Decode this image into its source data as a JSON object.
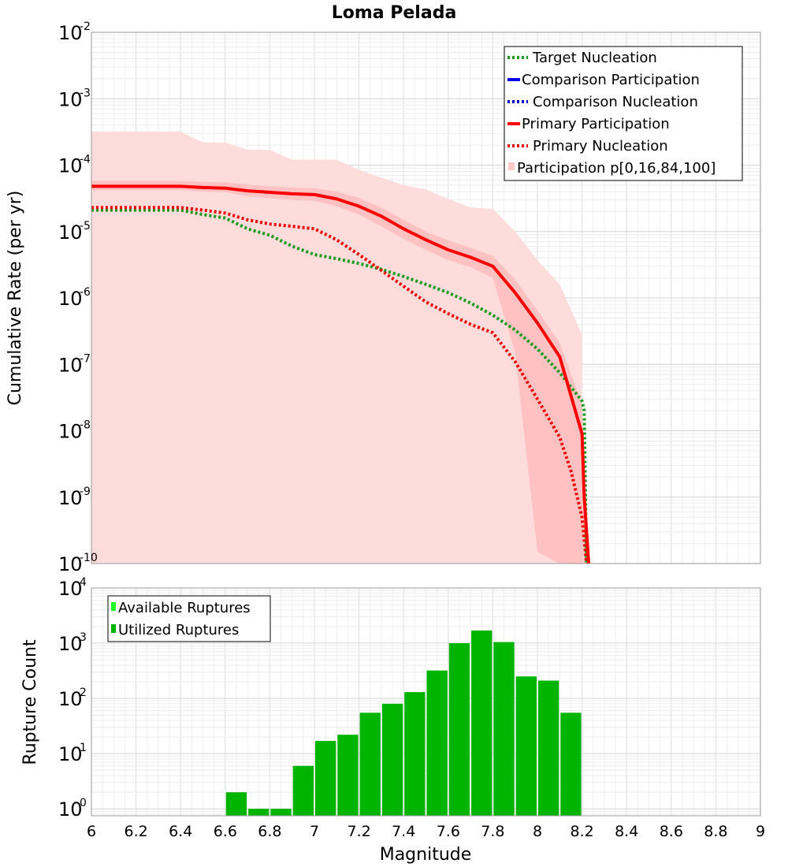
{
  "chart_data": [
    {
      "type": "line",
      "title": "Loma Pelada",
      "ylabel": "Cumulative Rate (per yr)",
      "xlabel": "",
      "yscale": "log",
      "xlim": [
        6,
        9
      ],
      "ylim": [
        1e-10,
        0.01
      ],
      "grid": true,
      "legend_position": "top-right",
      "ytick_exponents": [
        "-2",
        "-3",
        "-4",
        "-5",
        "-6",
        "-7",
        "-8",
        "-9",
        "-10"
      ],
      "series": [
        {
          "name": "Target Nucleation",
          "style": "dotted",
          "color": "#1a9a1a",
          "x": [
            6.0,
            6.4,
            6.5,
            6.6,
            6.7,
            6.8,
            6.9,
            7.0,
            7.1,
            7.2,
            7.3,
            7.4,
            7.5,
            7.6,
            7.7,
            7.8,
            7.9,
            8.0,
            8.1,
            8.2,
            8.21,
            8.22
          ],
          "y": [
            2.1e-05,
            2.1e-05,
            1.8e-05,
            1.6e-05,
            1.1e-05,
            8.8e-06,
            6e-06,
            4.5e-06,
            3.9e-06,
            3.3e-06,
            2.7e-06,
            2.1e-06,
            1.6e-06,
            1.2e-06,
            8.4e-07,
            5.5e-07,
            3.3e-07,
            1.7e-07,
            7.5e-08,
            2.8e-08,
            2e-08,
            1e-10
          ]
        },
        {
          "name": "Comparison Participation",
          "style": "solid",
          "color": "#0000ee",
          "x": [],
          "y": []
        },
        {
          "name": "Comparison Nucleation",
          "style": "dotted",
          "color": "#0000cc",
          "x": [],
          "y": []
        },
        {
          "name": "Primary Participation",
          "style": "solid",
          "color": "#ff0000",
          "x": [
            6.0,
            6.4,
            6.5,
            6.6,
            6.7,
            6.8,
            6.9,
            7.0,
            7.1,
            7.2,
            7.3,
            7.4,
            7.5,
            7.6,
            7.7,
            7.8,
            7.9,
            8.0,
            8.1,
            8.2,
            8.21,
            8.23
          ],
          "y": [
            4.8e-05,
            4.8e-05,
            4.6e-05,
            4.5e-05,
            4.1e-05,
            3.9e-05,
            3.7e-05,
            3.6e-05,
            3.1e-05,
            2.4e-05,
            1.7e-05,
            1.1e-05,
            7.5e-06,
            5.3e-06,
            4.1e-06,
            3e-06,
            1.2e-06,
            4.2e-07,
            1.3e-07,
            9e-09,
            1e-09,
            1e-10
          ]
        },
        {
          "name": "Primary Nucleation",
          "style": "dotted",
          "color": "#ee0000",
          "x": [
            6.0,
            6.4,
            6.5,
            6.6,
            6.7,
            6.8,
            6.9,
            7.0,
            7.1,
            7.2,
            7.3,
            7.4,
            7.5,
            7.6,
            7.7,
            7.8,
            7.9,
            8.0,
            8.1,
            8.15,
            8.2,
            8.22
          ],
          "y": [
            2.3e-05,
            2.3e-05,
            2.1e-05,
            1.9e-05,
            1.5e-05,
            1.3e-05,
            1.2e-05,
            1.1e-05,
            7.5e-06,
            4.5e-06,
            2.6e-06,
            1.5e-06,
            8.7e-07,
            5.8e-07,
            4e-07,
            3e-07,
            1.1e-07,
            3e-08,
            8e-09,
            2.5e-09,
            5e-10,
            1e-10
          ]
        }
      ],
      "bands": [
        {
          "name": "Participation p[0,16,84,100]",
          "color": "#ffc9c9",
          "outer": {
            "x": [
              6.0,
              6.4,
              6.5,
              6.6,
              6.7,
              6.8,
              6.9,
              7.0,
              7.1,
              7.2,
              7.3,
              7.4,
              7.5,
              7.6,
              7.7,
              7.8,
              7.9,
              8.0,
              8.1,
              8.2
            ],
            "upper": [
              0.00032,
              0.00032,
              0.00022,
              0.00022,
              0.00017,
              0.00017,
              0.00012,
              0.00012,
              0.00012,
              8.5e-05,
              6.5e-05,
              5e-05,
              4.3e-05,
              3.1e-05,
              2.3e-05,
              2.2e-05,
              1e-05,
              3.7e-06,
              1.6e-06,
              2.8e-07
            ],
            "lower": [
              1e-10,
              1e-10,
              1e-10,
              1e-10,
              1e-10,
              1e-10,
              1e-10,
              1e-10,
              1e-10,
              1e-10,
              1e-10,
              1e-10,
              1e-10,
              1e-10,
              1e-10,
              1e-10,
              1e-10,
              1e-10,
              1e-10,
              1e-10
            ]
          },
          "inner": {
            "x": [
              6.0,
              6.4,
              6.5,
              6.6,
              6.7,
              6.8,
              6.9,
              7.0,
              7.1,
              7.2,
              7.3,
              7.4,
              7.5,
              7.6,
              7.7,
              7.8,
              7.9,
              8.0,
              8.1,
              8.2,
              8.23
            ],
            "upper": [
              5.8e-05,
              5.8e-05,
              5.6e-05,
              5.5e-05,
              5.1e-05,
              4.8e-05,
              4.6e-05,
              4.5e-05,
              4e-05,
              3.2e-05,
              2.3e-05,
              1.5e-05,
              1e-05,
              7.4e-06,
              5.7e-06,
              4.3e-06,
              1.9e-06,
              6.5e-07,
              2.1e-07,
              2.5e-08,
              1e-10
            ],
            "lower": [
              4.2e-05,
              4.2e-05,
              4e-05,
              3.9e-05,
              3.4e-05,
              3.2e-05,
              3e-05,
              2.9e-05,
              2.4e-05,
              1.8e-05,
              1.2e-05,
              7.7e-06,
              5.3e-06,
              3.7e-06,
              2.9e-06,
              2e-06,
              1.5e-07,
              1.5e-10,
              1e-10,
              1e-10,
              1e-10
            ]
          }
        }
      ]
    },
    {
      "type": "bar",
      "title": "",
      "xlabel": "Magnitude",
      "ylabel": "Rupture Count",
      "yscale": "log",
      "xlim": [
        6,
        9
      ],
      "ylim": [
        0.75,
        10000
      ],
      "grid": true,
      "legend_position": "top-left",
      "xticks": [
        "6",
        "6.2",
        "6.4",
        "6.6",
        "6.8",
        "7",
        "7.2",
        "7.4",
        "7.6",
        "7.8",
        "8",
        "8.2",
        "8.4",
        "8.6",
        "8.8",
        "9"
      ],
      "ytick_exponents": [
        "4",
        "3",
        "2",
        "1",
        "0"
      ],
      "bar_width": 0.1,
      "series": [
        {
          "name": "Available Ruptures",
          "color": "#22ff22",
          "x": [],
          "values": []
        },
        {
          "name": "Utilized Ruptures",
          "color": "#00b400",
          "x": [
            6.65,
            6.75,
            6.85,
            6.95,
            7.05,
            7.15,
            7.25,
            7.35,
            7.45,
            7.55,
            7.65,
            7.75,
            7.85,
            7.95,
            8.05,
            8.15
          ],
          "values": [
            2,
            1,
            1,
            6,
            17,
            22,
            55,
            80,
            130,
            320,
            1000,
            1700,
            1050,
            250,
            210,
            55
          ]
        }
      ]
    }
  ]
}
